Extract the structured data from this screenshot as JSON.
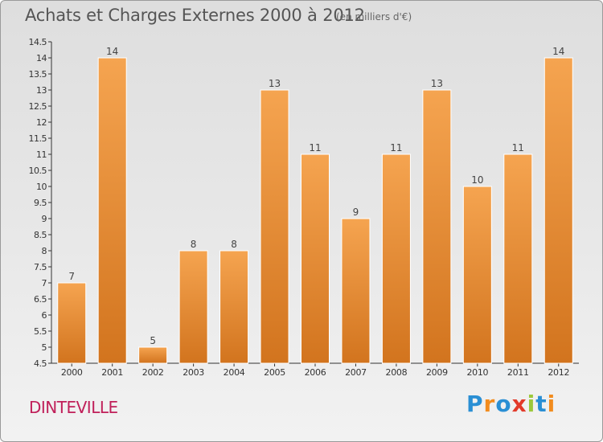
{
  "header": {
    "title": "Achats et Charges Externes 2000 à 2012",
    "unit_note": "(en milliers d'€)"
  },
  "footer": {
    "commune": "DINTEVILLE",
    "brand": [
      "P",
      "r",
      "o",
      "x",
      "i",
      "t",
      "i"
    ],
    "brand_colors": [
      "#2a8fd4",
      "#f28c1e",
      "#2a8fd4",
      "#e23a2a",
      "#9bc83a",
      "#2a8fd4",
      "#f28c1e"
    ]
  },
  "chart_data": {
    "type": "bar",
    "title": "Achats et Charges Externes 2000 à 2012",
    "subtitle": "(en milliers d'€)",
    "categories": [
      "2000",
      "2001",
      "2002",
      "2003",
      "2004",
      "2005",
      "2006",
      "2007",
      "2008",
      "2009",
      "2010",
      "2011",
      "2012"
    ],
    "values": [
      7,
      14,
      5,
      8,
      8,
      13,
      11,
      9,
      11,
      13,
      10,
      11,
      14
    ],
    "ylim": [
      4.5,
      14.5
    ],
    "yticks": [
      "4.5",
      "5",
      "5.5",
      "6",
      "6.5",
      "7",
      "7.5",
      "8",
      "8.5",
      "9",
      "9.5",
      "10",
      "10.5",
      "11",
      "11.5",
      "12",
      "12.5",
      "13",
      "13.5",
      "14",
      "14.5"
    ],
    "bar_color_light": "#f5a450",
    "bar_color_dark": "#d2741e",
    "grid": false,
    "legend": "none"
  }
}
